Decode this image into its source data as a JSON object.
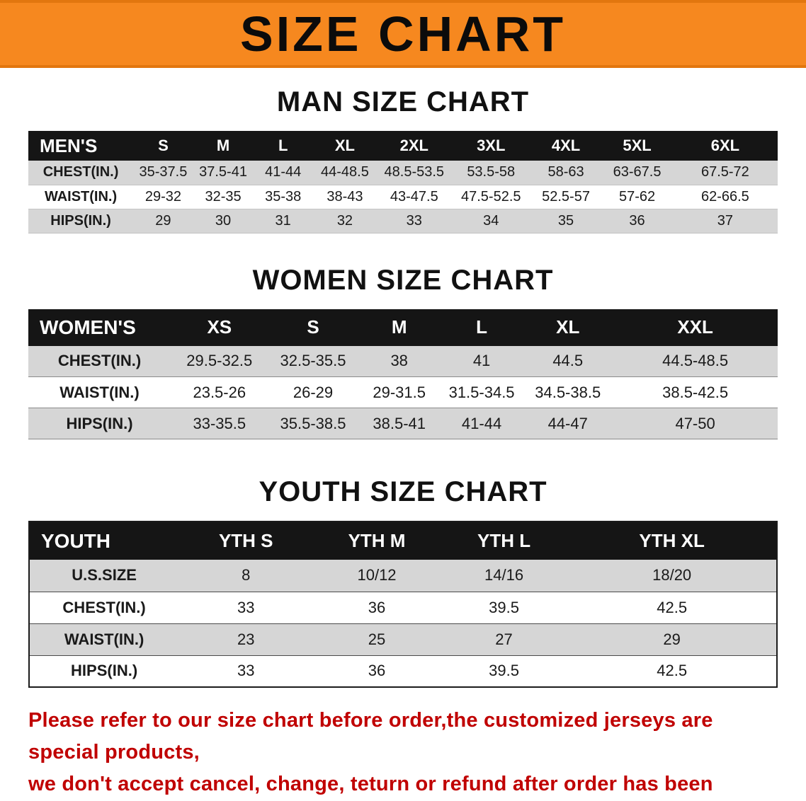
{
  "banner": {
    "title": "SIZE CHART"
  },
  "sections": [
    {
      "heading": "MAN SIZE CHART",
      "table": {
        "name": "men",
        "header": [
          "MEN'S",
          "S",
          "M",
          "L",
          "XL",
          "2XL",
          "3XL",
          "4XL",
          "5XL",
          "6XL"
        ],
        "rows": [
          {
            "label": "CHEST(IN.)",
            "values": [
              "35-37.5",
              "37.5-41",
              "41-44",
              "44-48.5",
              "48.5-53.5",
              "53.5-58",
              "58-63",
              "63-67.5",
              "67.5-72"
            ]
          },
          {
            "label": "WAIST(IN.)",
            "values": [
              "29-32",
              "32-35",
              "35-38",
              "38-43",
              "43-47.5",
              "47.5-52.5",
              "52.5-57",
              "57-62",
              "62-66.5"
            ]
          },
          {
            "label": "HIPS(IN.)",
            "values": [
              "29",
              "30",
              "31",
              "32",
              "33",
              "34",
              "35",
              "36",
              "37"
            ]
          }
        ]
      }
    },
    {
      "heading": "WOMEN SIZE CHART",
      "table": {
        "name": "women",
        "header": [
          "WOMEN'S",
          "XS",
          "S",
          "M",
          "L",
          "XL",
          "XXL"
        ],
        "rows": [
          {
            "label": "CHEST(IN.)",
            "values": [
              "29.5-32.5",
              "32.5-35.5",
              "38",
              "41",
              "44.5",
              "44.5-48.5"
            ]
          },
          {
            "label": "WAIST(IN.)",
            "values": [
              "23.5-26",
              "26-29",
              "29-31.5",
              "31.5-34.5",
              "34.5-38.5",
              "38.5-42.5"
            ]
          },
          {
            "label": "HIPS(IN.)",
            "values": [
              "33-35.5",
              "35.5-38.5",
              "38.5-41",
              "41-44",
              "44-47",
              "47-50"
            ]
          }
        ]
      }
    },
    {
      "heading": "YOUTH SIZE CHART",
      "table": {
        "name": "youth",
        "header": [
          "YOUTH",
          "YTH S",
          "YTH M",
          "YTH L",
          "YTH XL"
        ],
        "rows": [
          {
            "label": "U.S.SIZE",
            "values": [
              "8",
              "10/12",
              "14/16",
              "18/20"
            ]
          },
          {
            "label": "CHEST(IN.)",
            "values": [
              "33",
              "36",
              "39.5",
              "42.5"
            ]
          },
          {
            "label": "WAIST(IN.)",
            "values": [
              "23",
              "25",
              "27",
              "29"
            ]
          },
          {
            "label": "HIPS(IN.)",
            "values": [
              "33",
              "36",
              "39.5",
              "42.5"
            ]
          }
        ]
      }
    }
  ],
  "footer": {
    "text_line1": "Please refer to our size chart before order,the customized jerseys are special products,",
    "text_line2": "we don't accept cancel, change, teturn or refund after order has been placed!"
  },
  "colors": {
    "banner_orange": "#f6881f",
    "header_black": "#151515",
    "row_gray": "#d6d6d6",
    "footer_red": "#c00000"
  }
}
